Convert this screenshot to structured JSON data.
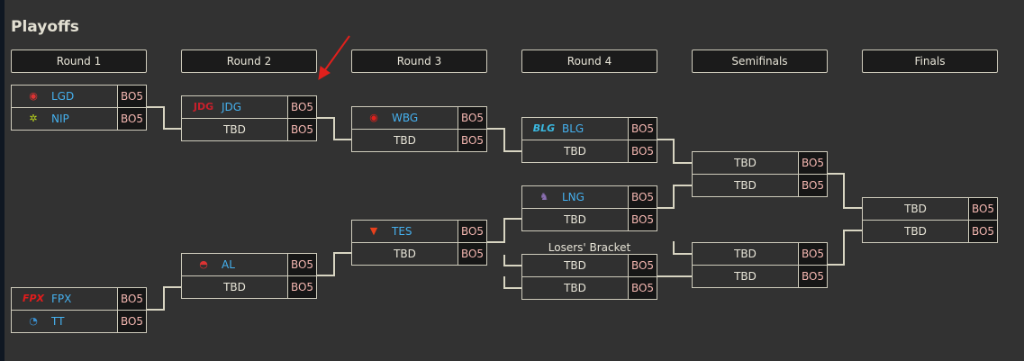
{
  "title": "Playoffs",
  "rounds": [
    "Round 1",
    "Round 2",
    "Round 3",
    "Round 4",
    "Semifinals",
    "Finals"
  ],
  "format": "BO5",
  "tbd": "TBD",
  "losers_bracket": "Losers' Bracket",
  "teams": {
    "lgd": "LGD",
    "nip": "NIP",
    "jdg": "JDG",
    "wbg": "WBG",
    "blg": "BLG",
    "lng": "LNG",
    "tes": "TES",
    "al": "AL",
    "fpx": "FPX",
    "tt": "TT"
  },
  "colors": {
    "background": "#323232",
    "team_text": "#45b0ee",
    "score_text": "#f3b6b0",
    "connector": "#d8d5c2",
    "arrow": "#e0201c"
  }
}
